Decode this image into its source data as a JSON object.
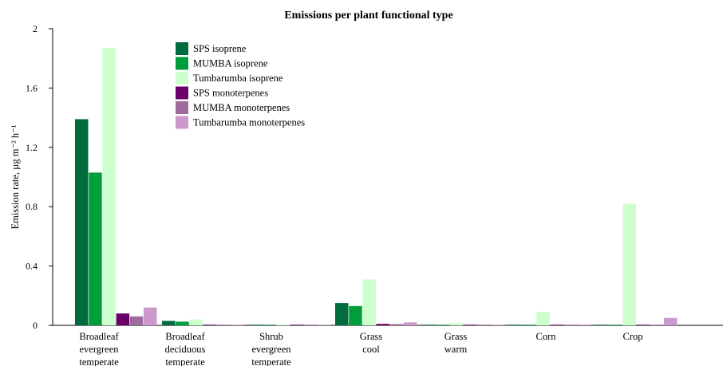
{
  "chart_data": {
    "type": "bar",
    "title": "Emissions per plant functional type",
    "ylabel": "Emission rate, µg m⁻² h⁻¹",
    "xlabel": "",
    "ylim": [
      0,
      2
    ],
    "yticks": [
      "0",
      "0.4",
      "0.8",
      "1.2",
      "1.6",
      "2"
    ],
    "ytick_values": [
      0,
      0.4,
      0.8,
      1.2,
      1.6,
      2
    ],
    "categories": [
      [
        "Broadleaf",
        "evergreen",
        "temperate"
      ],
      [
        "Broadleaf",
        "deciduous",
        "temperate"
      ],
      [
        "Shrub",
        "evergreen",
        "temperate"
      ],
      [
        "Grass",
        "cool"
      ],
      [
        "Grass",
        "warm"
      ],
      [
        "Corn"
      ],
      [
        "Crop"
      ]
    ],
    "legend_position": "top-left",
    "series": [
      {
        "name": "SPS isoprene",
        "color": "#006b3c",
        "values": [
          1.39,
          0.03,
          0.003,
          0.15,
          0.003,
          0.002,
          0.002
        ]
      },
      {
        "name": "MUMBA isoprene",
        "color": "#009e3a",
        "values": [
          1.03,
          0.025,
          0.003,
          0.13,
          0.002,
          0.002,
          0.002
        ]
      },
      {
        "name": "Tumbarumba isoprene",
        "color": "#ccffcc",
        "values": [
          1.87,
          0.04,
          0.004,
          0.31,
          0.015,
          0.09,
          0.82
        ]
      },
      {
        "name": "SPS monoterpenes",
        "color": "#6b006b",
        "values": [
          0.08,
          0.003,
          0.001,
          0.01,
          0.002,
          0.002,
          0.002
        ]
      },
      {
        "name": "MUMBA monoterpenes",
        "color": "#9e6b9e",
        "values": [
          0.06,
          0.003,
          0.001,
          0.008,
          0.002,
          0.002,
          0.002
        ]
      },
      {
        "name": "Tumbarumba monoterpenes",
        "color": "#cc99cc",
        "values": [
          0.12,
          0.004,
          0.001,
          0.02,
          0.003,
          0.005,
          0.05
        ]
      }
    ]
  }
}
